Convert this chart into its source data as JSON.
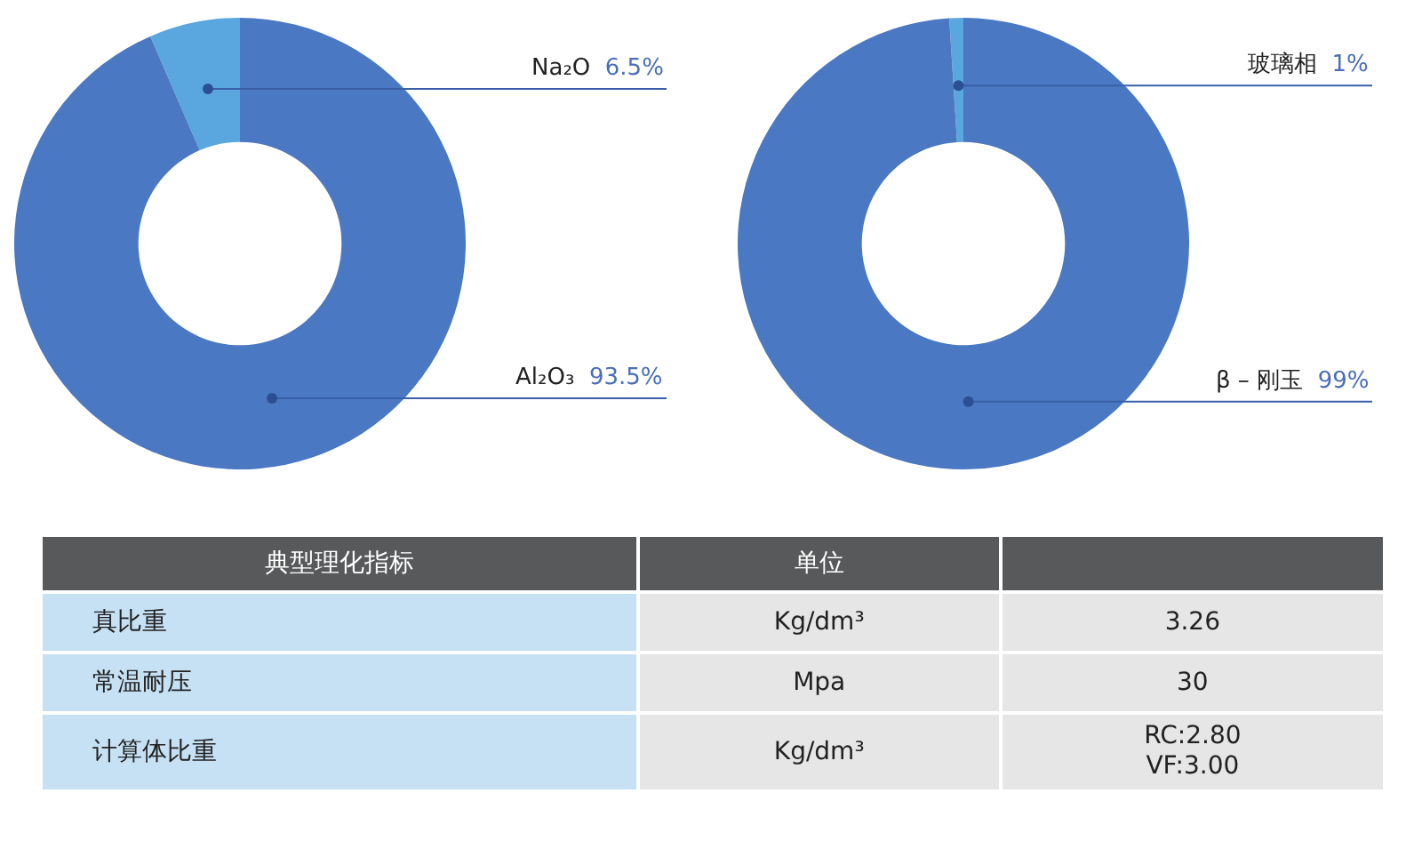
{
  "chart_data": [
    {
      "type": "donut",
      "categories": [
        "Na₂O",
        "Al₂O₃"
      ],
      "values": [
        6.5,
        93.5
      ],
      "colors": [
        "#5aa7e0",
        "#4a78c2"
      ],
      "value_labels": [
        "6.5%",
        "93.5%"
      ],
      "legend": false
    },
    {
      "type": "donut",
      "categories": [
        "玻璃相",
        "β – 刚玉"
      ],
      "values": [
        1,
        99
      ],
      "colors": [
        "#5aa7e0",
        "#4a78c2"
      ],
      "value_labels": [
        "1%",
        "99%"
      ],
      "legend": false
    },
    {
      "type": "other",
      "categories": [
        "典型理化指标",
        "单位",
        null
      ],
      "cells": [
        [
          "真比重",
          "Kg/dm³",
          "3.26"
        ],
        [
          "常温耐压",
          "Mpa",
          "30"
        ],
        [
          "计算体比重",
          "Kg/dm³",
          "RC:2.80\nVF:3.00"
        ]
      ]
    }
  ]
}
